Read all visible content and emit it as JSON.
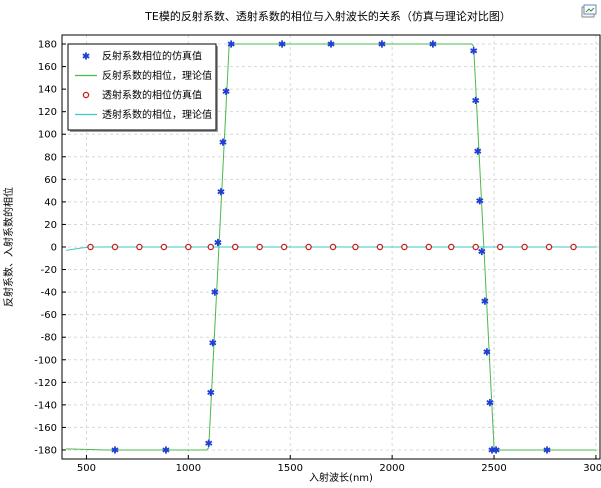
{
  "colors": {
    "reflect_marker": "#1f3fd6",
    "reflect_line": "#4cb84c",
    "transmit_marker": "#c81e1e",
    "transmit_line": "#3fc9c9",
    "grid": "#d8d8d8",
    "frame": "#000000"
  },
  "icons": {
    "export": "export-image-icon"
  },
  "chart_data": {
    "type": "line",
    "title": "TE模的反射系数、透射系数的相位与入射波长的关系（仿真与理论对比图）",
    "xlabel": "入射波长(nm)",
    "ylabel": "反射系数、入射系数的相位",
    "xlim": [
      380,
      3020
    ],
    "ylim": [
      -188,
      188
    ],
    "xticks": [
      500,
      1000,
      1500,
      2000,
      2500,
      3000
    ],
    "yticks": [
      180,
      160,
      140,
      120,
      100,
      80,
      60,
      40,
      20,
      0,
      -20,
      -40,
      -60,
      -80,
      -100,
      -120,
      -140,
      -160,
      -180
    ],
    "grid": true,
    "legend": {
      "position": "top-left"
    },
    "series": [
      {
        "name": "反射系数相位的仿真值",
        "kind": "scatter",
        "marker": "asterisk",
        "x": [
          640,
          890,
          1100,
          1110,
          1120,
          1130,
          1145,
          1160,
          1170,
          1185,
          1210,
          1460,
          1700,
          1950,
          2200,
          2400,
          2410,
          2420,
          2430,
          2440,
          2455,
          2465,
          2480,
          2490,
          2510,
          2760
        ],
        "y": [
          -180,
          -180,
          -174,
          -129,
          -85,
          -40,
          4,
          49,
          93,
          138,
          180,
          180,
          180,
          180,
          180,
          174,
          130,
          85,
          41,
          -4,
          -48,
          -93,
          -138,
          -180,
          -180,
          -180
        ]
      },
      {
        "name": "反射系数的相位，理论值",
        "kind": "line",
        "x": [
          400,
          600,
          1090,
          1100,
          1200,
          1210,
          2390,
          2400,
          2500,
          2510,
          3000
        ],
        "y": [
          -179,
          -180,
          -180,
          -178,
          178,
          180,
          180,
          178,
          -178,
          -180,
          -180
        ]
      },
      {
        "name": "透射系数的相位仿真值",
        "kind": "scatter",
        "marker": "circle",
        "x": [
          520,
          640,
          760,
          880,
          1000,
          1110,
          1230,
          1350,
          1470,
          1590,
          1710,
          1820,
          1940,
          2060,
          2180,
          2290,
          2410,
          2530,
          2650,
          2770,
          2890
        ],
        "y": [
          0,
          0,
          0,
          0,
          0,
          0,
          0,
          0,
          0,
          0,
          0,
          0,
          0,
          0,
          0,
          0,
          0,
          0,
          0,
          0,
          0
        ]
      },
      {
        "name": "透射系数的相位，理论值",
        "kind": "line",
        "x": [
          400,
          470,
          520,
          600,
          3000
        ],
        "y": [
          -3,
          -1,
          0,
          0,
          0
        ]
      }
    ]
  }
}
